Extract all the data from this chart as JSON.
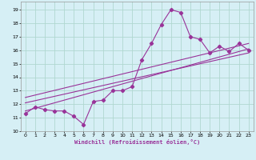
{
  "xlabel": "Windchill (Refroidissement éolien,°C)",
  "background_color": "#d6eff5",
  "grid_color": "#b0d8d0",
  "line_color": "#993399",
  "xlim": [
    -0.5,
    23.5
  ],
  "ylim": [
    10.0,
    19.6
  ],
  "xticks": [
    0,
    1,
    2,
    3,
    4,
    5,
    6,
    7,
    8,
    9,
    10,
    11,
    12,
    13,
    14,
    15,
    16,
    17,
    18,
    19,
    20,
    21,
    22,
    23
  ],
  "yticks": [
    10,
    11,
    12,
    13,
    14,
    15,
    16,
    17,
    18,
    19
  ],
  "curve1_x": [
    0,
    1,
    2,
    3,
    4,
    5,
    6,
    7,
    8,
    9,
    10,
    11,
    12,
    13,
    14,
    15,
    16,
    17,
    18,
    19,
    20,
    21,
    22,
    23
  ],
  "curve1_y": [
    11.3,
    11.8,
    11.6,
    11.5,
    11.5,
    11.1,
    10.5,
    12.2,
    12.3,
    13.0,
    13.0,
    13.3,
    15.3,
    16.5,
    17.9,
    19.0,
    18.8,
    17.0,
    16.8,
    15.8,
    16.3,
    15.9,
    16.5,
    16.0
  ],
  "line2_x": [
    0,
    23
  ],
  "line2_y": [
    11.5,
    16.1
  ],
  "line3_x": [
    0,
    23
  ],
  "line3_y": [
    12.1,
    15.8
  ],
  "line4_x": [
    0,
    23
  ],
  "line4_y": [
    12.5,
    16.5
  ]
}
